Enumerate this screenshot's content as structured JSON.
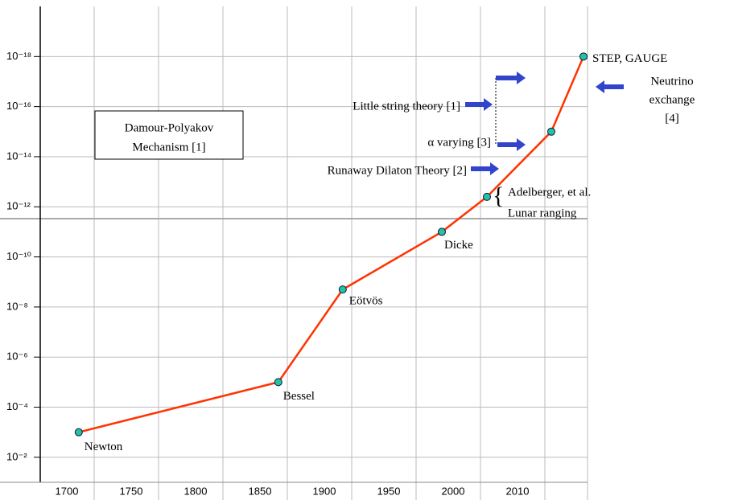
{
  "chart_data": {
    "type": "line",
    "x": [
      1688,
      1843,
      1893,
      1970,
      2001,
      2011,
      2016
    ],
    "values": [
      0.001,
      1e-05,
      2e-09,
      1e-11,
      4e-13,
      1e-15,
      1e-18
    ],
    "color": "#ff3300",
    "marker_color": "#20c4a0",
    "point_labels": [
      "Newton",
      "Bessel",
      "Eötvös",
      "Dicke",
      [
        "Adelberger, et al.",
        "Lunar ranging"
      ],
      null,
      "STEP, GAUGE"
    ],
    "xticks": [
      1700,
      1750,
      1800,
      1850,
      1900,
      1950,
      2000,
      2010
    ],
    "ylim": [
      0.1,
      1e-20
    ],
    "yscale": "log",
    "yticks": [
      {
        "value": 0.01,
        "label": "10⁻²"
      },
      {
        "value": 0.0001,
        "label": "10⁻⁴"
      },
      {
        "value": 1e-06,
        "label": "10⁻⁶"
      },
      {
        "value": 1e-08,
        "label": "10⁻⁸"
      },
      {
        "value": 1e-10,
        "label": "10⁻¹⁰"
      },
      {
        "value": 1e-12,
        "label": "10⁻¹²"
      },
      {
        "value": 1e-14,
        "label": "10⁻¹⁴"
      },
      {
        "value": 1e-16,
        "label": "10⁻¹⁶"
      },
      {
        "value": 1e-18,
        "label": "10⁻¹⁸"
      }
    ],
    "grid": true,
    "annotations": {
      "box": [
        "Damour-Polyakov",
        "Mechanism [1]"
      ],
      "little_string": "Little string theory [1]",
      "alpha": "α varying [3]",
      "runaway": "Runaway Dilaton Theory [2]",
      "neutrino": [
        "Neutrino",
        "exchange",
        "[4]"
      ]
    }
  }
}
